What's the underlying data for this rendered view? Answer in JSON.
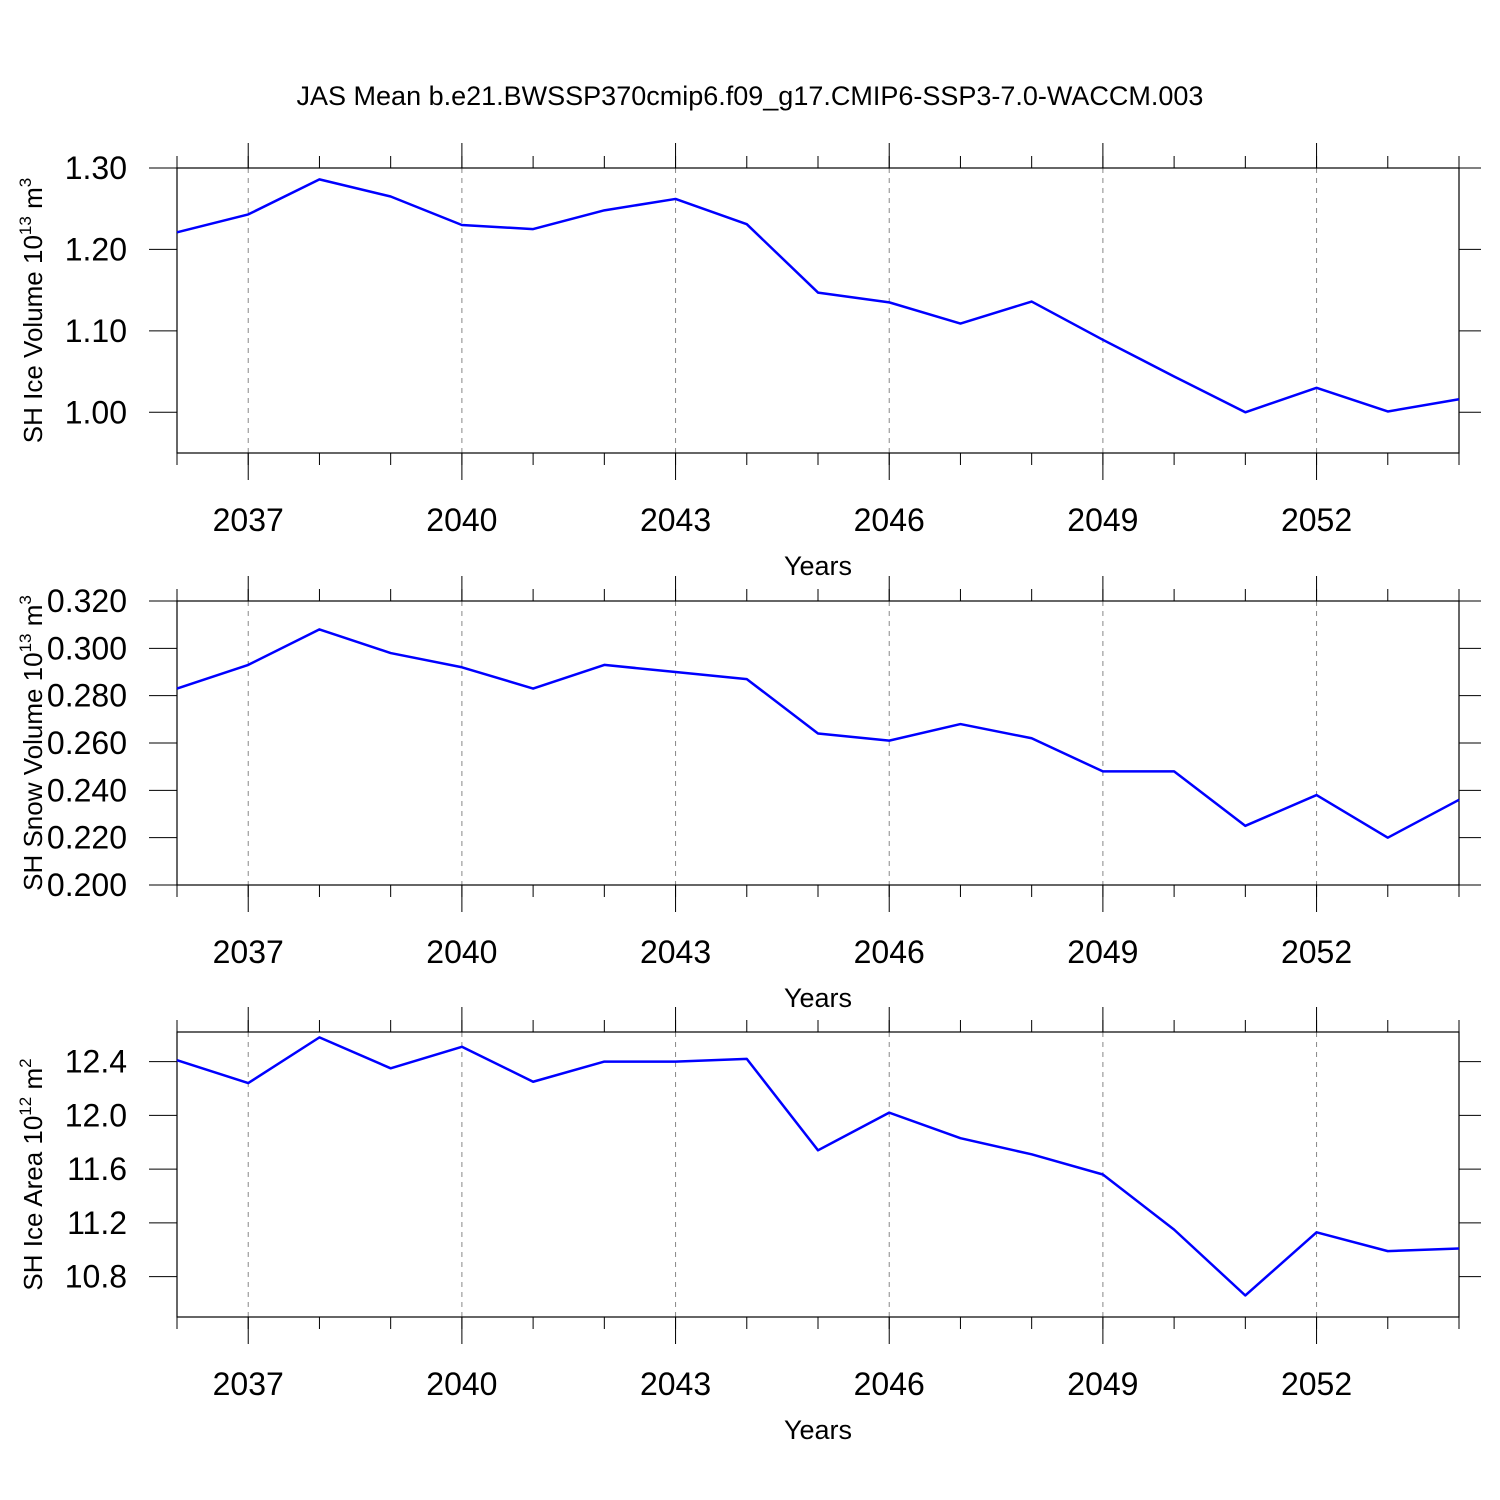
{
  "title": "JAS Mean b.e21.BWSSP370cmip6.f09_g17.CMIP6-SSP3-7.0-WACCM.003",
  "chart_data": [
    {
      "type": "line",
      "ylabel": [
        "SH Ice Volume 10",
        "13",
        " m",
        "3"
      ],
      "xlabel": "Years",
      "x": [
        2036,
        2037,
        2038,
        2039,
        2040,
        2041,
        2042,
        2043,
        2044,
        2045,
        2046,
        2047,
        2048,
        2049,
        2050,
        2051,
        2052,
        2053,
        2054
      ],
      "series": [
        {
          "color": "#0000ff",
          "values": [
            1.221,
            1.243,
            1.286,
            1.265,
            1.23,
            1.225,
            1.248,
            1.262,
            1.231,
            1.147,
            1.135,
            1.109,
            1.136,
            1.089,
            1.044,
            1.0,
            1.03,
            1.001,
            1.016
          ]
        }
      ],
      "xlim": [
        2036,
        2054
      ],
      "xticks": [
        2037,
        2040,
        2043,
        2046,
        2049,
        2052
      ],
      "ylim": [
        0.95,
        1.3
      ],
      "yticks": [
        {
          "value": 1.0,
          "label": "1.00"
        },
        {
          "value": 1.1,
          "label": "1.10"
        },
        {
          "value": 1.2,
          "label": "1.20"
        },
        {
          "value": 1.3,
          "label": "1.30"
        }
      ],
      "grid": "x"
    },
    {
      "type": "line",
      "ylabel": [
        "SH Snow Volume 10",
        "13",
        " m",
        "3"
      ],
      "xlabel": "Years",
      "x": [
        2036,
        2037,
        2038,
        2039,
        2040,
        2041,
        2042,
        2043,
        2044,
        2045,
        2046,
        2047,
        2048,
        2049,
        2050,
        2051,
        2052,
        2053,
        2054
      ],
      "series": [
        {
          "color": "#0000ff",
          "values": [
            0.283,
            0.293,
            0.308,
            0.298,
            0.292,
            0.283,
            0.293,
            0.29,
            0.287,
            0.264,
            0.261,
            0.268,
            0.262,
            0.248,
            0.248,
            0.225,
            0.238,
            0.22,
            0.236
          ]
        }
      ],
      "xlim": [
        2036,
        2054
      ],
      "xticks": [
        2037,
        2040,
        2043,
        2046,
        2049,
        2052
      ],
      "ylim": [
        0.2,
        0.32
      ],
      "yticks": [
        {
          "value": 0.2,
          "label": "0.200"
        },
        {
          "value": 0.22,
          "label": "0.220"
        },
        {
          "value": 0.24,
          "label": "0.240"
        },
        {
          "value": 0.26,
          "label": "0.260"
        },
        {
          "value": 0.28,
          "label": "0.280"
        },
        {
          "value": 0.3,
          "label": "0.300"
        },
        {
          "value": 0.32,
          "label": "0.320"
        }
      ],
      "grid": "x"
    },
    {
      "type": "line",
      "ylabel": [
        "SH Ice Area 10",
        "12",
        " m",
        "2"
      ],
      "xlabel": "Years",
      "x": [
        2036,
        2037,
        2038,
        2039,
        2040,
        2041,
        2042,
        2043,
        2044,
        2045,
        2046,
        2047,
        2048,
        2049,
        2050,
        2051,
        2052,
        2053,
        2054
      ],
      "series": [
        {
          "color": "#0000ff",
          "values": [
            12.41,
            12.24,
            12.58,
            12.35,
            12.51,
            12.25,
            12.4,
            12.4,
            12.42,
            11.74,
            12.02,
            11.83,
            11.71,
            11.56,
            11.15,
            10.66,
            11.13,
            10.99,
            11.01
          ]
        }
      ],
      "xlim": [
        2036,
        2054
      ],
      "xticks": [
        2037,
        2040,
        2043,
        2046,
        2049,
        2052
      ],
      "ylim": [
        10.5,
        12.62
      ],
      "yticks": [
        10.8,
        11.2,
        11.6,
        {
          "value": 12.0,
          "label": "12.0"
        },
        12.4
      ],
      "grid": "x"
    }
  ]
}
